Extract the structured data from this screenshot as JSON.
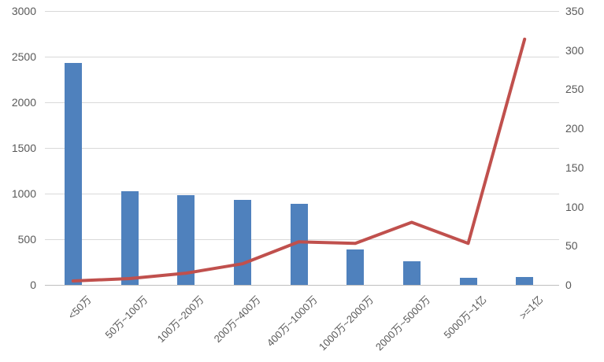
{
  "chart_data": {
    "type": "bar",
    "combo": "bar-line-dual-axis",
    "title": "",
    "legend": "none",
    "grid": "horizontal",
    "categories": [
      "<50万",
      "50万~100万",
      "100万~200万",
      "200万~400万",
      "400万~1000万",
      "1000万~2000万",
      "2000万~5000万",
      "5000万~1亿",
      ">=1亿"
    ],
    "series": [
      {
        "name": "bar-series",
        "type": "bar",
        "axis": "left",
        "color": "#4f81bd",
        "values": [
          2430,
          1025,
          980,
          930,
          885,
          385,
          260,
          80,
          90
        ]
      },
      {
        "name": "line-series",
        "type": "line",
        "axis": "right",
        "color": "#c0504d",
        "values": [
          5,
          8,
          15,
          27,
          55,
          53,
          80,
          53,
          314
        ]
      }
    ],
    "left_axis": {
      "min": 0,
      "max": 3000,
      "step": 500,
      "tick_labels": [
        "0",
        "500",
        "1000",
        "1500",
        "2000",
        "2500",
        "3000"
      ]
    },
    "right_axis": {
      "min": 0,
      "max": 350,
      "step": 50,
      "tick_labels": [
        "0",
        "50",
        "100",
        "150",
        "200",
        "250",
        "300",
        "350"
      ]
    },
    "colors": {
      "bar": "#4f81bd",
      "line": "#c0504d",
      "gridline": "#d9d9d9",
      "axis_line": "#bfbfbf",
      "label_text": "#595959",
      "background": "#ffffff"
    }
  }
}
